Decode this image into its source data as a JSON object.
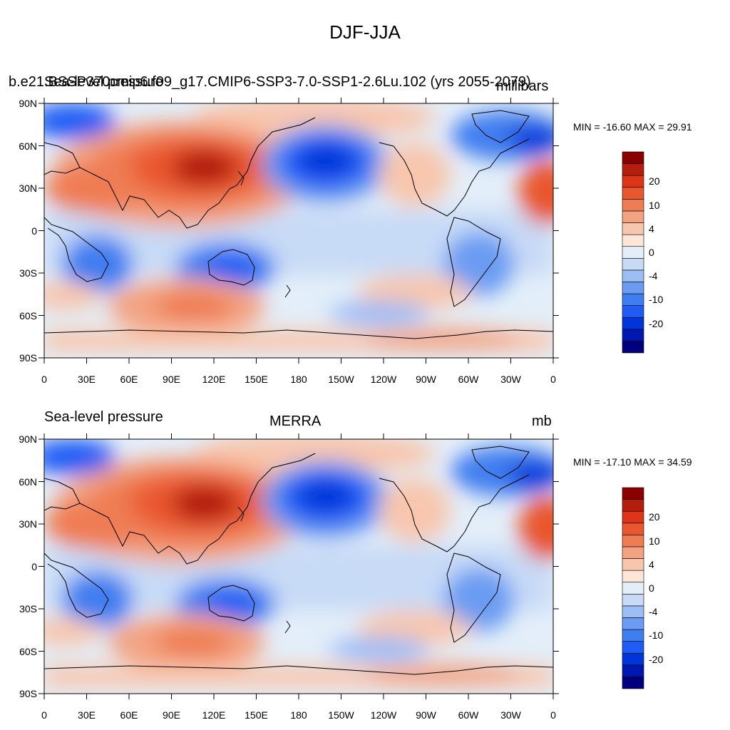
{
  "title": "DJF-JJA",
  "longitude_ticks": [
    "0",
    "30E",
    "60E",
    "90E",
    "120E",
    "150E",
    "180",
    "150W",
    "120W",
    "90W",
    "60W",
    "30W",
    "0"
  ],
  "latitude_ticks": [
    "90N",
    "60N",
    "30N",
    "0",
    "30S",
    "60S",
    "90S"
  ],
  "colors": {
    "levels": [
      "#00007f",
      "#0018b2",
      "#0035d9",
      "#1e5cf5",
      "#3f7ef0",
      "#6b9cf2",
      "#9dbdf5",
      "#c7daf6",
      "#e3eef9",
      "#fde6d8",
      "#f8c6ad",
      "#f3a382",
      "#ef7d53",
      "#e9572d",
      "#de3519",
      "#b41e0c",
      "#8a0000"
    ]
  },
  "panels": [
    {
      "left_label": "b.e21.BSSP370cmip6.f09_g17.CMIP6-SSP3-7.0-SSP1-2.6Lu.102 (yrs 2055-2079)",
      "left_label_overlay": "Sea-level pressure",
      "center_label": "",
      "right_label": "millibars",
      "stats": "MIN = -16.60 MAX =  29.91",
      "colorbar_labels": [
        "20",
        "10",
        "4",
        "0",
        "-4",
        "-10",
        "-20"
      ]
    },
    {
      "left_label": "Sea-level pressure",
      "center_label": "MERRA",
      "right_label": "mb",
      "stats": "MIN = -17.10 MAX =  34.59",
      "colorbar_labels": [
        "20",
        "10",
        "4",
        "0",
        "-4",
        "-10",
        "-20"
      ]
    }
  ]
}
